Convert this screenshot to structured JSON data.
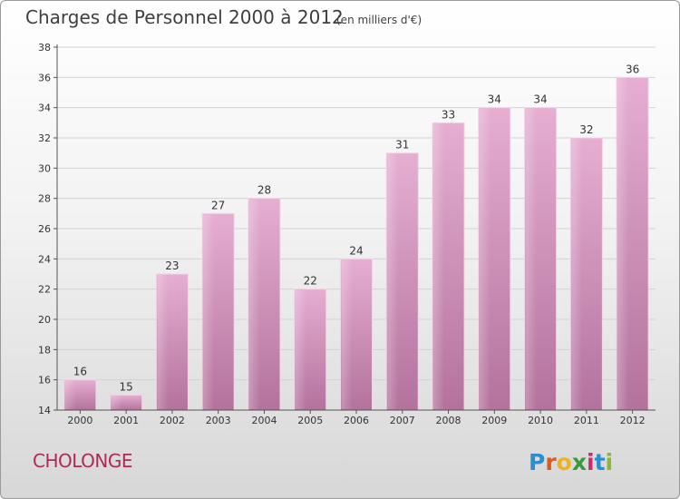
{
  "header": {
    "title": "Charges de Personnel 2000 à 2012",
    "subtitle": "(en milliers d'€)"
  },
  "footer": {
    "commune": "CHOLONGE",
    "brand": [
      "P",
      "r",
      "o",
      "x",
      "i",
      "t",
      "i"
    ],
    "brand_colors": [
      "#2a8fd0",
      "#d95b1d",
      "#f0b21b",
      "#3a9a3a",
      "#cf2a6c",
      "#2a8fd0",
      "#8ab82f"
    ]
  },
  "chart_data": {
    "type": "bar",
    "title": "Charges de Personnel 2000 à 2012",
    "subtitle": "(en milliers d'€)",
    "categories": [
      "2000",
      "2001",
      "2002",
      "2003",
      "2004",
      "2005",
      "2006",
      "2007",
      "2008",
      "2009",
      "2010",
      "2011",
      "2012"
    ],
    "values": [
      16,
      15,
      23,
      27,
      28,
      22,
      24,
      31,
      33,
      34,
      34,
      32,
      36
    ],
    "ylim": [
      14,
      38
    ],
    "yticks": [
      14,
      16,
      18,
      20,
      22,
      24,
      26,
      28,
      30,
      32,
      34,
      36,
      38
    ],
    "grid": true,
    "legend": "none",
    "bar_color": "#d18cba",
    "bar_color_top": "#e6aed2",
    "bar_color_bottom": "#b3729c"
  }
}
